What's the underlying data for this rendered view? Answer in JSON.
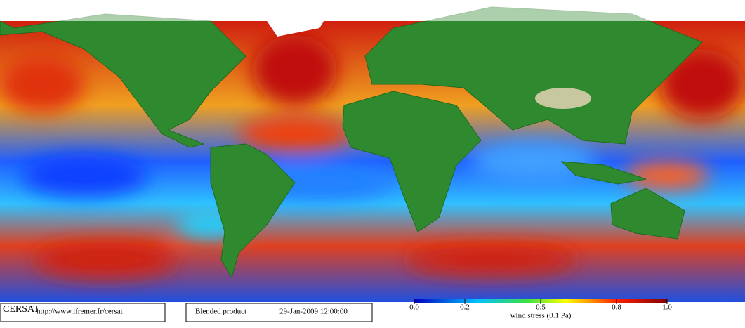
{
  "footer": {
    "logo": "CERSAT",
    "url": "http://www.ifremer.fr/cersat",
    "product": "Blended product",
    "datetime": "29-Jan-2009 12:00:00"
  },
  "colorbar": {
    "label": "wind stress (0.1 Pa)",
    "range": [
      0,
      1
    ],
    "ticks": [
      {
        "value": 0,
        "label": "0.0"
      },
      0.2,
      0.5,
      0.8,
      {
        "value": 1,
        "label": "1.0"
      }
    ]
  }
}
